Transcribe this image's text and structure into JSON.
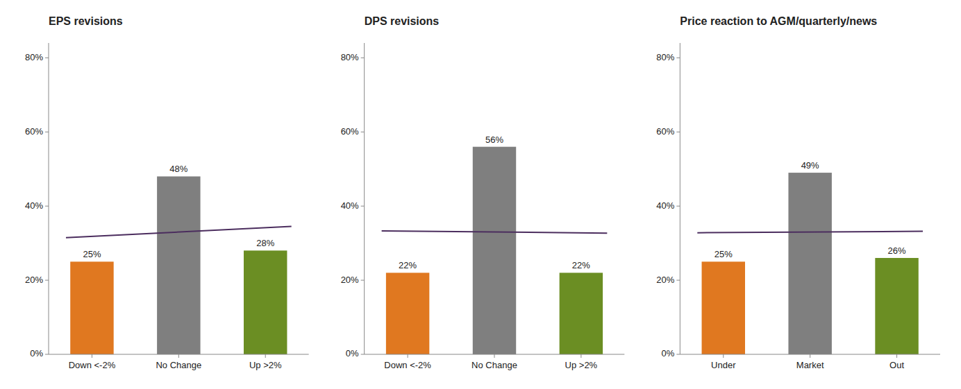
{
  "chart_data": [
    {
      "type": "bar",
      "title": "EPS revisions",
      "categories": [
        "Down <-2%",
        "No Change",
        "Up >2%"
      ],
      "values": [
        0.25,
        0.48,
        0.28
      ],
      "value_labels": [
        "25%",
        "48%",
        "28%"
      ],
      "colors": [
        "#E07820",
        "#7F7F7F",
        "#6B8E23"
      ],
      "trend_line": {
        "values": [
          0.315,
          0.345
        ],
        "color": "#4B2D5E"
      },
      "ylim": [
        0,
        0.84
      ],
      "yticks": [
        {
          "value": 0.0,
          "label": "0%"
        },
        {
          "value": 0.2,
          "label": "20%"
        },
        {
          "value": 0.4,
          "label": "40%"
        },
        {
          "value": 0.6,
          "label": "60%"
        },
        {
          "value": 0.8,
          "label": "80%"
        }
      ],
      "grid": false,
      "data_labels": true
    },
    {
      "type": "bar",
      "title": "DPS revisions",
      "categories": [
        "Down <-2%",
        "No Change",
        "Up >2%"
      ],
      "values": [
        0.22,
        0.56,
        0.22
      ],
      "value_labels": [
        "22%",
        "56%",
        "22%"
      ],
      "colors": [
        "#E07820",
        "#7F7F7F",
        "#6B8E23"
      ],
      "trend_line": {
        "values": [
          0.333,
          0.327
        ],
        "color": "#4B2D5E"
      },
      "ylim": [
        0,
        0.84
      ],
      "yticks": [
        {
          "value": 0.0,
          "label": "0%"
        },
        {
          "value": 0.2,
          "label": "20%"
        },
        {
          "value": 0.4,
          "label": "40%"
        },
        {
          "value": 0.6,
          "label": "60%"
        },
        {
          "value": 0.8,
          "label": "80%"
        }
      ],
      "grid": false,
      "data_labels": true
    },
    {
      "type": "bar",
      "title": "Price reaction to AGM/quarterly/news",
      "categories": [
        "Under",
        "Market",
        "Out"
      ],
      "values": [
        0.25,
        0.49,
        0.26
      ],
      "value_labels": [
        "25%",
        "49%",
        "26%"
      ],
      "colors": [
        "#E07820",
        "#7F7F7F",
        "#6B8E23"
      ],
      "trend_line": {
        "values": [
          0.328,
          0.332
        ],
        "color": "#4B2D5E"
      },
      "ylim": [
        0,
        0.84
      ],
      "yticks": [
        {
          "value": 0.0,
          "label": "0%"
        },
        {
          "value": 0.2,
          "label": "20%"
        },
        {
          "value": 0.4,
          "label": "40%"
        },
        {
          "value": 0.6,
          "label": "60%"
        },
        {
          "value": 0.8,
          "label": "80%"
        }
      ],
      "grid": false,
      "data_labels": true
    }
  ]
}
